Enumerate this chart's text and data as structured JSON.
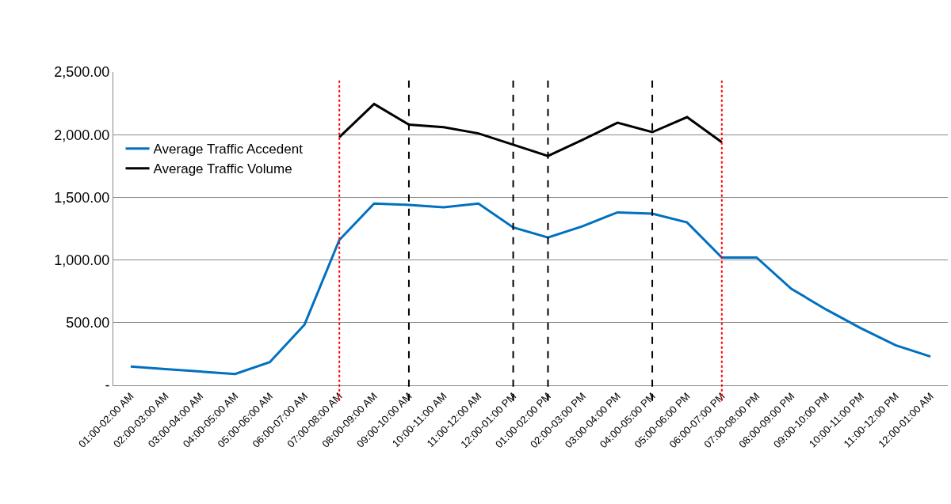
{
  "chart_data": {
    "type": "line",
    "categories": [
      "01:00-02:00 AM",
      "02:00-03:00 AM",
      "03:00-04:00 AM",
      "04:00-05:00 AM",
      "05:00-06:00 AM",
      "06:00-07:00 AM",
      "07:00-08:00 AM",
      "08:00-09:00 AM",
      "09:00-10:00 AM",
      "10:00-11:00 AM",
      "11:00-12:00 AM",
      "12:00-01:00 PM",
      "01:00-02:00 PM",
      "02:00-03:00 PM",
      "03:00-04:00 PM",
      "04:00-05:00 PM",
      "05:00-06:00 PM",
      "06:00-07:00 PM",
      "07:00-08:00 PM",
      "08:00-09:00 PM",
      "09:00-10:00 PM",
      "10:00-11:00 PM",
      "11:00-12:00 PM",
      "12:00-01:00 AM"
    ],
    "series": [
      {
        "name": "Average Traffic Accedent",
        "color": "#0070c0",
        "values": [
          150,
          130,
          110,
          90,
          185,
          485,
          1160,
          1450,
          1440,
          1420,
          1450,
          1260,
          1180,
          1270,
          1380,
          1370,
          1300,
          1020,
          1020,
          770,
          605,
          455,
          320,
          230
        ]
      },
      {
        "name": "Average Traffic Volume",
        "color": "#000000",
        "values": [
          null,
          null,
          null,
          null,
          null,
          null,
          1980,
          2245,
          2080,
          2060,
          2010,
          1920,
          1830,
          1960,
          2095,
          2020,
          2140,
          1940,
          null,
          null,
          null,
          null,
          null,
          null
        ]
      }
    ],
    "ylim": [
      0,
      2500
    ],
    "yticks": [
      {
        "value": 0,
        "label": "-"
      },
      {
        "value": 500,
        "label": "500.00"
      },
      {
        "value": 1000,
        "label": "1,000.00"
      },
      {
        "value": 1500,
        "label": "1,500.00"
      },
      {
        "value": 2000,
        "label": "2,000.00"
      },
      {
        "value": 2500,
        "label": "2,500.00"
      }
    ],
    "ref_lines": [
      {
        "axis": "x",
        "value": "07:00-08:00 AM",
        "color": "#ff0000",
        "line_style": "dotted"
      },
      {
        "axis": "x",
        "value": "09:00-10:00 AM",
        "color": "#000000",
        "line_style": "dashed"
      },
      {
        "axis": "x",
        "value": "12:00-01:00 PM",
        "color": "#000000",
        "line_style": "dashed"
      },
      {
        "axis": "x",
        "value": "01:00-02:00 PM",
        "color": "#000000",
        "line_style": "dashed"
      },
      {
        "axis": "x",
        "value": "04:00-05:00 PM",
        "color": "#000000",
        "line_style": "dashed"
      },
      {
        "axis": "x",
        "value": "06:00-07:00 PM",
        "color": "#ff0000",
        "line_style": "dotted"
      }
    ],
    "grid": "y",
    "legend": "top left",
    "marker": "none",
    "line_style": "solid"
  }
}
